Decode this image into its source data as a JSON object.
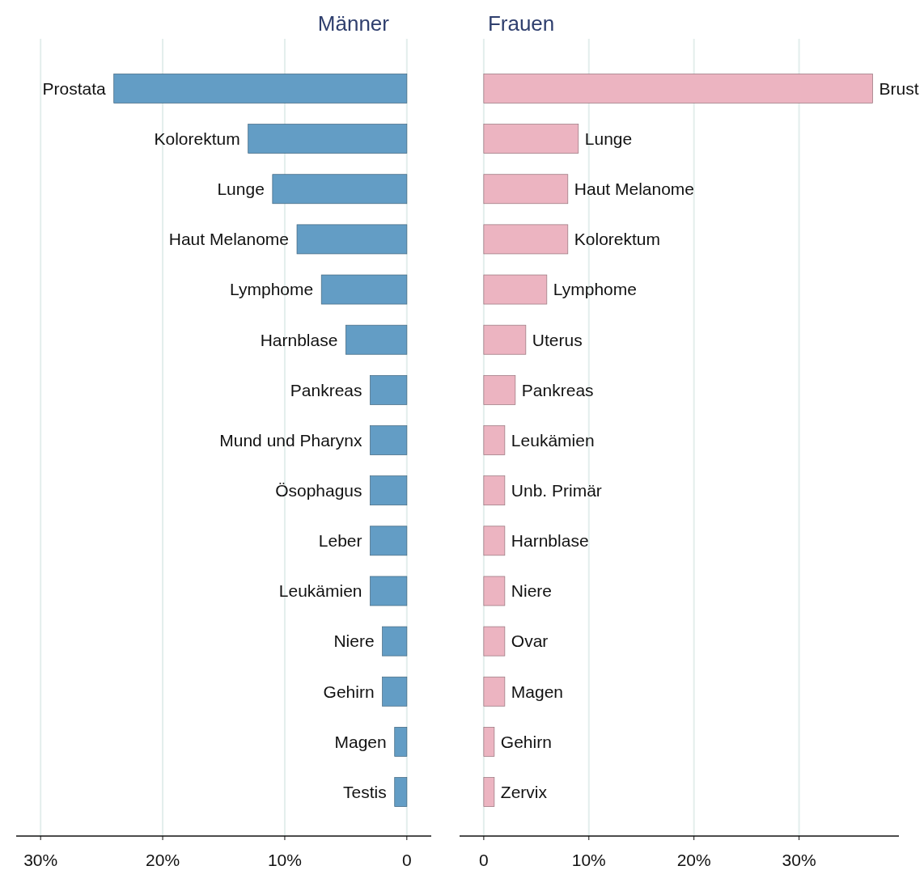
{
  "chart_data": [
    {
      "type": "bar",
      "orientation": "horizontal",
      "title": "Männer",
      "categories": [
        "Prostata",
        "Kolorektum",
        "Lunge",
        "Haut Melanome",
        "Lymphome",
        "Harnblase",
        "Pankreas",
        "Mund und Pharynx",
        "Ösophagus",
        "Leber",
        "Leukämien",
        "Niere",
        "Gehirn",
        "Magen",
        "Testis"
      ],
      "values": [
        24,
        13,
        11,
        9,
        7,
        5,
        3,
        3,
        3,
        3,
        3,
        2,
        2,
        1,
        1
      ],
      "color": "#639dc5",
      "xlim": [
        32,
        -2
      ],
      "xticks": [
        {
          "value": 30,
          "label": "30%"
        },
        {
          "value": 20,
          "label": "20%"
        },
        {
          "value": 10,
          "label": "10%"
        },
        0
      ],
      "grid": "x"
    },
    {
      "type": "bar",
      "orientation": "horizontal",
      "title": "Frauen",
      "categories": [
        "Brust",
        "Lunge",
        "Haut Melanome",
        "Kolorektum",
        "Lymphome",
        "Uterus",
        "Pankreas",
        "Leukämien",
        "Unb. Primär",
        "Harnblase",
        "Niere",
        "Ovar",
        "Magen",
        "Gehirn",
        "Zervix"
      ],
      "values": [
        37,
        9,
        8,
        8,
        6,
        4,
        3,
        2,
        2,
        2,
        2,
        2,
        2,
        1,
        1
      ],
      "color": "#ecb4c1",
      "xlim": [
        -2.3,
        39.5
      ],
      "xticks": [
        0,
        {
          "value": 10,
          "label": "10%"
        },
        {
          "value": 20,
          "label": "20%"
        },
        {
          "value": 30,
          "label": "30%"
        }
      ],
      "grid": "x"
    }
  ]
}
